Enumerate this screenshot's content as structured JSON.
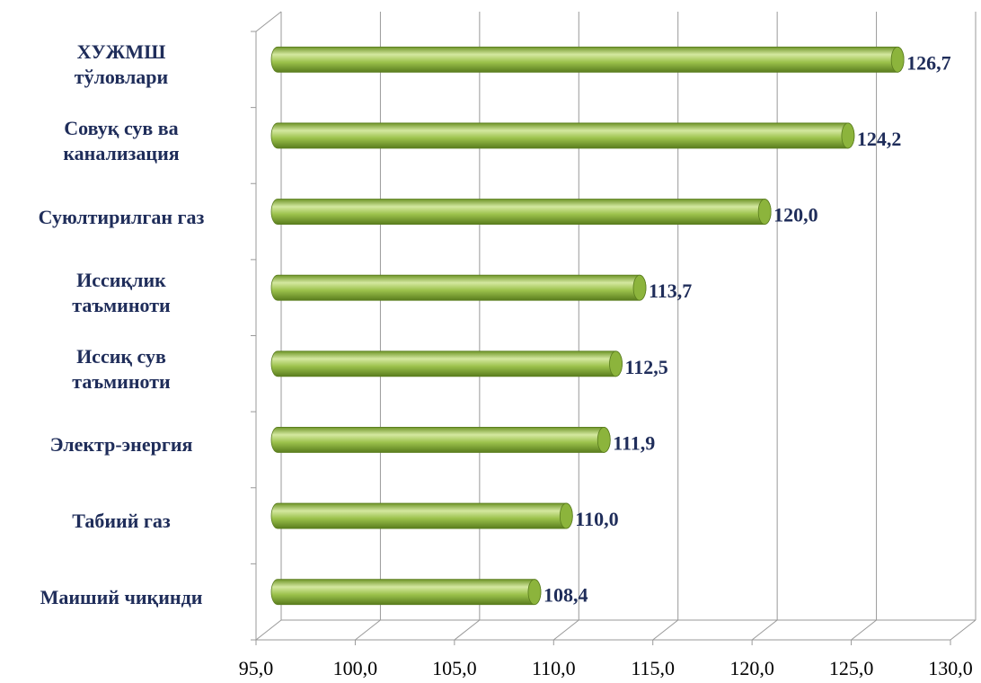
{
  "chart_data": {
    "type": "bar",
    "orientation": "horizontal",
    "categories": [
      "ХУЖМШ\nтўловлари",
      "Совуқ сув ва\nканализация",
      "Суюлтирилган газ",
      "Иссиқлик\nтаъминоти",
      "Иссиқ сув\nтаъминоти",
      "Электр-энергия",
      "Табиий газ",
      "Маиший чиқинди"
    ],
    "values": [
      126.7,
      124.2,
      120.0,
      113.7,
      112.5,
      111.9,
      110.0,
      108.4
    ],
    "value_labels": [
      "126,7",
      "124,2",
      "120,0",
      "113,7",
      "112,5",
      "111,9",
      "110,0",
      "108,4"
    ],
    "color": "#8cb43c",
    "xlim": [
      95,
      130
    ],
    "xticks": [
      {
        "value": 95,
        "label": "95,0"
      },
      {
        "value": 100,
        "label": "100,0"
      },
      {
        "value": 105,
        "label": "105,0"
      },
      {
        "value": 110,
        "label": "110,0"
      },
      {
        "value": 115,
        "label": "115,0"
      },
      {
        "value": 120,
        "label": "120,0"
      },
      {
        "value": 125,
        "label": "125,0"
      },
      {
        "value": 130,
        "label": "130,0"
      }
    ],
    "grid": true
  }
}
